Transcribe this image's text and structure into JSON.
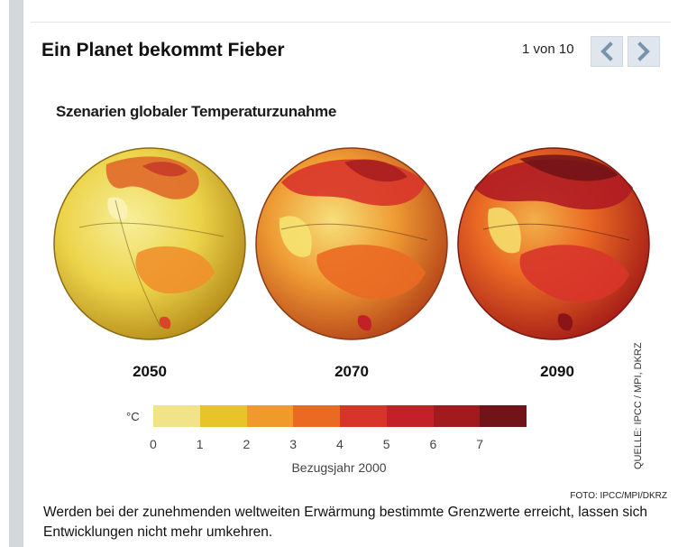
{
  "gallery": {
    "title": "Ein Planet bekommt Fieber",
    "pager_text": "1 von 10",
    "prev_icon": "chevron-left-icon",
    "next_icon": "chevron-right-icon"
  },
  "figure": {
    "title": "Szenarien globaler Temperaturzunahme",
    "years": [
      "2050",
      "2070",
      "2090"
    ],
    "legend": {
      "unit": "°C",
      "ticks": [
        "0",
        "1",
        "2",
        "3",
        "4",
        "5",
        "6",
        "7"
      ],
      "reference": "Bezugsjahr 2000",
      "colors": [
        "#f2e38a",
        "#e8c42b",
        "#f09a2c",
        "#ea6a24",
        "#d8352a",
        "#c4202a",
        "#a01a1e",
        "#701419"
      ]
    },
    "source": "QUELLE: IPCC / MPI, DKRZ"
  },
  "photo_credit": "FOTO: IPCC/MPI/DKRZ",
  "caption": "Werden bei der zunehmenden weltweiten Erwärmung bestimmte Grenzwerte erreicht, lassen sich Entwicklungen nicht mehr umkehren.",
  "accent": "#dfe6ee"
}
